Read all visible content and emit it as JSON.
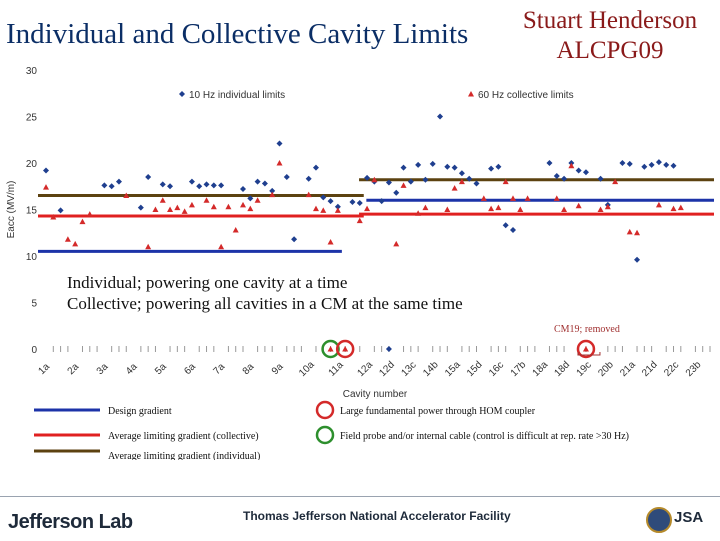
{
  "slide": {
    "title": "Individual and Collective Cavity Limits",
    "author_lines": [
      "Stuart Henderson",
      "ALCPG09"
    ]
  },
  "chart_data": {
    "type": "scatter",
    "ylabel": "Eacc (MV/m)",
    "xlabel": "Cavity number",
    "ylim": [
      0,
      30
    ],
    "yticks": [
      0,
      5,
      10,
      15,
      20,
      25,
      30
    ],
    "categories": [
      "1a",
      "1b",
      "1c",
      "1d",
      "2a",
      "2b",
      "2c",
      "2d",
      "3a",
      "3b",
      "3c",
      "3d",
      "4a",
      "4b",
      "4c",
      "4d",
      "5a",
      "5b",
      "5c",
      "5d",
      "6a",
      "6b",
      "6c",
      "6d",
      "7a",
      "7b",
      "7c",
      "7d",
      "8a",
      "8b",
      "8c",
      "8d",
      "9a",
      "9b",
      "9c",
      "9d",
      "10a",
      "10b",
      "10c",
      "10d",
      "11a",
      "11b",
      "11c",
      "11d",
      "12a",
      "12b",
      "12c",
      "12d",
      "13a",
      "13b",
      "13c",
      "13d",
      "14a",
      "14b",
      "14c",
      "14d",
      "15a",
      "15b",
      "15c",
      "15d",
      "16a",
      "16b",
      "16c",
      "16d",
      "17a",
      "17b",
      "17c",
      "17d",
      "18a",
      "18b",
      "18c",
      "18d",
      "19a",
      "19b",
      "19c",
      "19d",
      "20a",
      "20b",
      "20c",
      "20d",
      "21a",
      "21b",
      "21c",
      "21d",
      "22a",
      "22b",
      "22c",
      "22d",
      "23a",
      "23b",
      "23c",
      "23d"
    ],
    "tick_labels": [
      "1a",
      "2a",
      "3a",
      "4a",
      "5a",
      "6a",
      "7a",
      "8a",
      "9a",
      "10a",
      "11a",
      "12a",
      "12d",
      "13c",
      "14b",
      "15a",
      "15d",
      "16c",
      "17b",
      "18a",
      "18d",
      "19c",
      "20b",
      "21a",
      "21d",
      "22c",
      "23b"
    ],
    "grid": false,
    "legend_placement": "top",
    "series": [
      {
        "name": "10 Hz individual limits",
        "marker": "diamond",
        "color": "#1f3f8f",
        "values": [
          19.2,
          null,
          14.9,
          null,
          null,
          null,
          null,
          null,
          17.6,
          17.5,
          18.0,
          null,
          null,
          15.2,
          18.5,
          null,
          17.7,
          17.5,
          null,
          null,
          18.0,
          17.5,
          17.7,
          17.6,
          17.6,
          null,
          null,
          17.2,
          16.2,
          18.0,
          17.8,
          17.0,
          22.1,
          18.5,
          11.8,
          null,
          18.3,
          19.5,
          16.3,
          15.9,
          15.3,
          null,
          15.8,
          15.7,
          18.4,
          18.0,
          15.9,
          17.9,
          16.8,
          19.5,
          18.0,
          19.8,
          18.2,
          19.9,
          25.0,
          19.6,
          19.5,
          18.9,
          18.3,
          17.8,
          null,
          19.4,
          19.6,
          13.3,
          12.8,
          null,
          null,
          null,
          null,
          20.0,
          18.6,
          18.3,
          20.0,
          19.2,
          19.0,
          null,
          18.3,
          15.5,
          null,
          20.0,
          19.9,
          9.6,
          19.6,
          19.8,
          20.1,
          19.8,
          19.7,
          null,
          null,
          null,
          null,
          null
        ]
      },
      {
        "name": "60 Hz collective limits",
        "marker": "triangle",
        "color": "#d42a2a",
        "values": [
          17.4,
          14.2,
          null,
          11.8,
          11.3,
          13.7,
          14.5,
          null,
          null,
          null,
          null,
          16.5,
          null,
          null,
          11.0,
          15.0,
          16.0,
          15.0,
          15.2,
          14.8,
          15.5,
          null,
          16.0,
          15.3,
          11.0,
          15.3,
          12.8,
          15.5,
          15.1,
          16.0,
          null,
          16.6,
          20.0,
          null,
          null,
          null,
          16.6,
          15.1,
          14.9,
          11.5,
          14.9,
          null,
          null,
          13.8,
          15.1,
          18.2,
          null,
          null,
          11.3,
          17.6,
          null,
          14.6,
          15.2,
          null,
          null,
          15.0,
          17.3,
          18.0,
          null,
          null,
          16.2,
          15.1,
          15.2,
          18.0,
          16.2,
          15.0,
          16.2,
          null,
          null,
          null,
          16.2,
          15.0,
          19.7,
          15.4,
          null,
          null,
          15.0,
          15.3,
          18.0,
          null,
          12.6,
          12.5,
          null,
          null,
          15.5,
          null,
          15.1,
          15.2,
          null,
          null,
          null,
          null
        ]
      }
    ],
    "horizontal_lines": [
      {
        "name": "Design gradient",
        "color": "#1c33a8",
        "segments": [
          {
            "x": [
              "1a",
              "11a"
            ],
            "y": 10.5
          },
          {
            "x": [
              "12b",
              "23d"
            ],
            "y": 16.0
          }
        ]
      },
      {
        "name": "Average limiting gradient (collective)",
        "color": "#e02020",
        "segments": [
          {
            "x": [
              "1a",
              "11d"
            ],
            "y": 14.3
          },
          {
            "x": [
              "12a",
              "23d"
            ],
            "y": 14.5
          }
        ]
      },
      {
        "name": "Average limiting gradient (individual)",
        "color": "#5c4210",
        "segments": [
          {
            "x": [
              "1a",
              "11d"
            ],
            "y": 16.5
          },
          {
            "x": [
              "12a",
              "23d"
            ],
            "y": 18.2
          }
        ]
      }
    ],
    "circled_cavities": [
      {
        "cavity": "10d",
        "color": "#2d8f2d"
      },
      {
        "cavity": "11b",
        "color": "#d42a2a"
      },
      {
        "cavity": "19c",
        "color": "#d42a2a"
      }
    ],
    "baseline_markers": {
      "diamond": [
        "12d"
      ],
      "triangle": [
        "10d",
        "11b",
        "19c"
      ]
    },
    "annotations": [
      "Individual; powering one cavity at a time",
      "Collective; powering all cavities in a CM at the same time"
    ],
    "cm_note": "CM19; removed",
    "line_legend": [
      {
        "label": "Design gradient",
        "color": "#1c33a8"
      },
      {
        "label": "Average limiting gradient (collective)",
        "color": "#e02020"
      },
      {
        "label": "Average limiting gradient (individual)",
        "color": "#5c4210"
      }
    ],
    "circle_legend": [
      {
        "label": "Large fundamental power through HOM coupler",
        "color": "#d42a2a"
      },
      {
        "label": "Field probe and/or internal cable (control is difficult at rep. rate >30 Hz)",
        "color": "#2d8f2d"
      }
    ]
  },
  "footer": {
    "logo": "Jefferson Lab",
    "facility": "Thomas Jefferson National Accelerator Facility",
    "jsa": "JSA"
  }
}
